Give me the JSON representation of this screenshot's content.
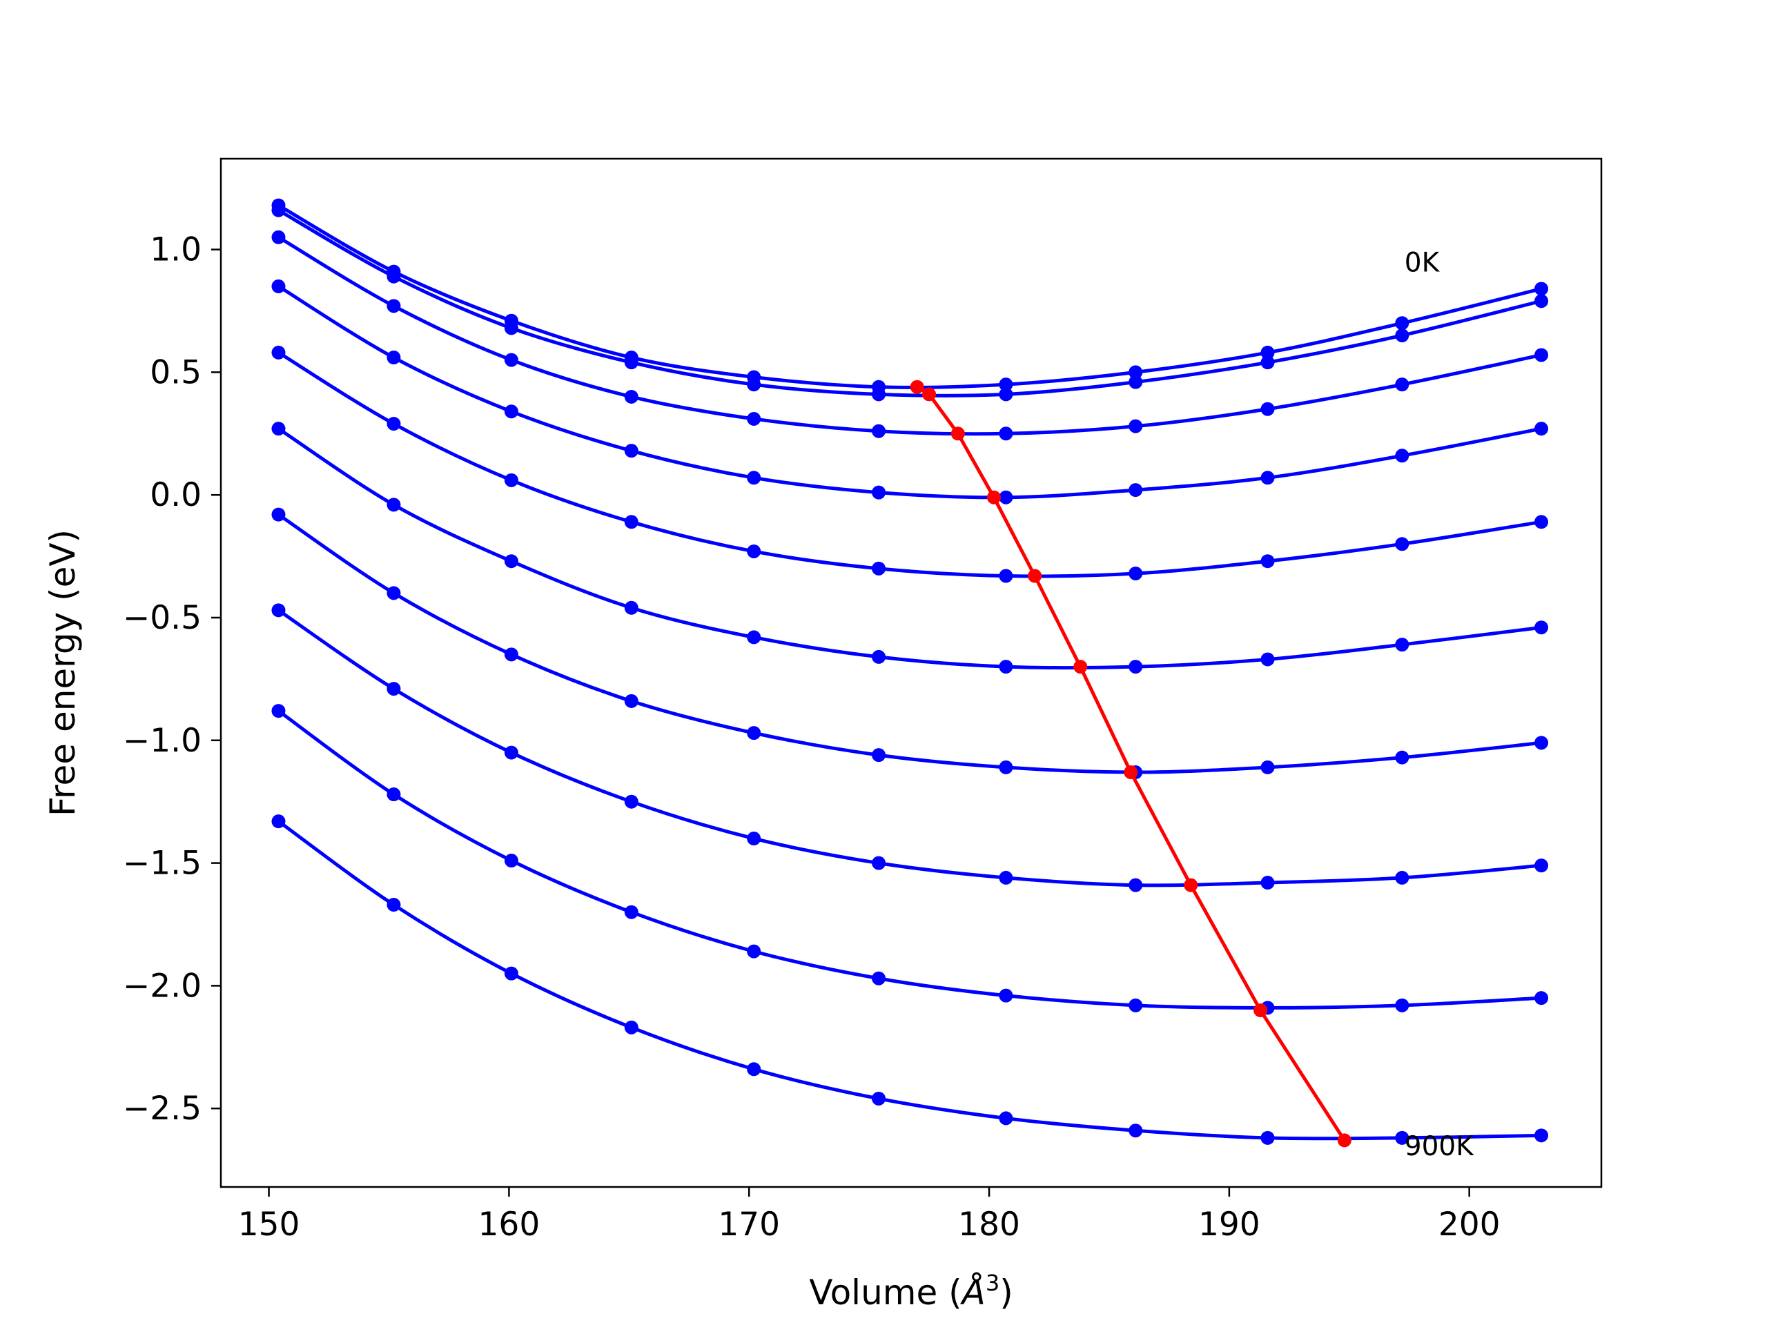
{
  "chart_data": {
    "type": "line",
    "title": "",
    "xlabel": "Volume (",
    "xlabel_symbol": "Å",
    "xlabel_exp": "3",
    "xlabel_close": ")",
    "ylabel": "Free energy (eV)",
    "xlim": [
      148,
      205.5
    ],
    "ylim": [
      -2.82,
      1.37
    ],
    "grid": false,
    "x_ticks": [
      150,
      160,
      170,
      180,
      190,
      200
    ],
    "x_tick_labels": [
      "150",
      "160",
      "170",
      "180",
      "190",
      "200"
    ],
    "y_ticks": [
      1.0,
      0.5,
      0.0,
      -0.5,
      -1.0,
      -1.5,
      -2.0,
      -2.5
    ],
    "y_tick_labels": [
      "1.0",
      "0.5",
      "0.0",
      "−0.5",
      "−1.0",
      "−1.5",
      "−2.0",
      "−2.5"
    ],
    "annotations": [
      {
        "text": "0K",
        "x": 197.3,
        "y": 0.91
      },
      {
        "text": "900K",
        "x": 197.3,
        "y": -2.69
      }
    ],
    "volumes": [
      150.4,
      155.2,
      160.1,
      165.1,
      170.2,
      175.4,
      180.7,
      186.1,
      191.6,
      197.2,
      203.0
    ],
    "series_color": "#0000ff",
    "series": [
      {
        "values": [
          1.18,
          0.91,
          0.71,
          0.56,
          0.48,
          0.44,
          0.45,
          0.5,
          0.58,
          0.7,
          0.84
        ]
      },
      {
        "values": [
          1.16,
          0.89,
          0.68,
          0.54,
          0.45,
          0.41,
          0.41,
          0.46,
          0.54,
          0.65,
          0.79
        ]
      },
      {
        "values": [
          1.05,
          0.77,
          0.55,
          0.4,
          0.31,
          0.26,
          0.25,
          0.28,
          0.35,
          0.45,
          0.57
        ]
      },
      {
        "values": [
          0.85,
          0.56,
          0.34,
          0.18,
          0.07,
          0.01,
          -0.01,
          0.02,
          0.07,
          0.16,
          0.27
        ]
      },
      {
        "values": [
          0.58,
          0.29,
          0.06,
          -0.11,
          -0.23,
          -0.3,
          -0.33,
          -0.32,
          -0.27,
          -0.2,
          -0.11
        ]
      },
      {
        "values": [
          0.27,
          -0.04,
          -0.27,
          -0.46,
          -0.58,
          -0.66,
          -0.7,
          -0.7,
          -0.67,
          -0.61,
          -0.54
        ]
      },
      {
        "values": [
          -0.08,
          -0.4,
          -0.65,
          -0.84,
          -0.97,
          -1.06,
          -1.11,
          -1.13,
          -1.11,
          -1.07,
          -1.01
        ]
      },
      {
        "values": [
          -0.47,
          -0.79,
          -1.05,
          -1.25,
          -1.4,
          -1.5,
          -1.56,
          -1.59,
          -1.58,
          -1.56,
          -1.51
        ]
      },
      {
        "values": [
          -0.88,
          -1.22,
          -1.49,
          -1.7,
          -1.86,
          -1.97,
          -2.04,
          -2.08,
          -2.09,
          -2.08,
          -2.05
        ]
      },
      {
        "values": [
          -1.33,
          -1.67,
          -1.95,
          -2.17,
          -2.34,
          -2.46,
          -2.54,
          -2.59,
          -2.62,
          -2.62,
          -2.61
        ]
      }
    ],
    "minima_line": {
      "color": "#ff0000",
      "points": [
        {
          "x": 177.0,
          "y": 0.44
        },
        {
          "x": 177.5,
          "y": 0.41
        },
        {
          "x": 178.7,
          "y": 0.25
        },
        {
          "x": 180.2,
          "y": -0.01
        },
        {
          "x": 181.9,
          "y": -0.33
        },
        {
          "x": 183.8,
          "y": -0.7
        },
        {
          "x": 185.9,
          "y": -1.13
        },
        {
          "x": 188.4,
          "y": -1.59
        },
        {
          "x": 191.3,
          "y": -2.1
        },
        {
          "x": 194.8,
          "y": -2.63
        }
      ]
    }
  }
}
